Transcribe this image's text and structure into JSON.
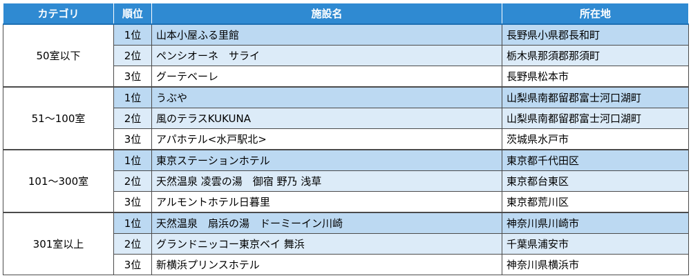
{
  "table": {
    "headers": {
      "category": "カテゴリ",
      "rank": "順位",
      "facility": "施設名",
      "location": "所在地"
    },
    "groups": [
      {
        "category": "50室以下",
        "rows": [
          {
            "rank": "1位",
            "facility": "山本小屋ふる里館",
            "location": "長野県小県郡長和町"
          },
          {
            "rank": "2位",
            "facility": "ペンシオーネ　サライ",
            "location": "栃木県那須郡那須町"
          },
          {
            "rank": "3位",
            "facility": "グーテベーレ",
            "location": "長野県松本市"
          }
        ]
      },
      {
        "category": "51～100室",
        "rows": [
          {
            "rank": "1位",
            "facility": "うぶや",
            "location": "山梨県南都留郡富士河口湖町"
          },
          {
            "rank": "2位",
            "facility": "風のテラスKUKUNA",
            "location": "山梨県南都留郡富士河口湖町"
          },
          {
            "rank": "3位",
            "facility": "アパホテル<水戸駅北>",
            "location": "茨城県水戸市"
          }
        ]
      },
      {
        "category": "101～300室",
        "rows": [
          {
            "rank": "1位",
            "facility": "東京ステーションホテル",
            "location": "東京都千代田区"
          },
          {
            "rank": "2位",
            "facility": "天然温泉 凌雲の湯　御宿 野乃 浅草",
            "location": "東京都台東区"
          },
          {
            "rank": "3位",
            "facility": "アルモントホテル日暮里",
            "location": "東京都荒川区"
          }
        ]
      },
      {
        "category": "301室以上",
        "rows": [
          {
            "rank": "1位",
            "facility": "天然温泉　扇浜の湯　ドーミーイン川崎",
            "location": "神奈川県川崎市"
          },
          {
            "rank": "2位",
            "facility": "グランドニッコー東京ベイ 舞浜",
            "location": "千葉県浦安市"
          },
          {
            "rank": "3位",
            "facility": "新横浜プリンスホテル",
            "location": "神奈川県横浜市"
          }
        ]
      }
    ]
  },
  "colors": {
    "header_bg": "#2f8ad2",
    "row_rank1_bg": "#bcd9f2",
    "row_rank2_bg": "#dcebf8",
    "row_rank3_bg": "#ffffff"
  }
}
